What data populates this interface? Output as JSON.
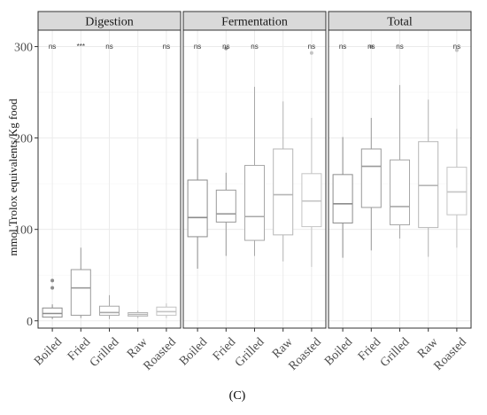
{
  "chart_data": {
    "type": "boxplot",
    "ylabel": "mmol Trolox equivalents/Kg food",
    "ylim": [
      -8,
      318
    ],
    "yticks": [
      0,
      100,
      200,
      300
    ],
    "categories": [
      "Boiled",
      "Fried",
      "Grilled",
      "Raw",
      "Roasted"
    ],
    "panels": [
      {
        "title": "Digestion",
        "boxes": [
          {
            "category": "Boiled",
            "whisker_low": 2,
            "q1": 4,
            "median": 8,
            "q3": 14,
            "whisker_high": 18,
            "outliers": [
              36,
              44
            ],
            "significance": "ns"
          },
          {
            "category": "Fried",
            "whisker_low": 3,
            "q1": 6,
            "median": 36,
            "q3": 56,
            "whisker_high": 80,
            "outliers": [],
            "significance": "***"
          },
          {
            "category": "Grilled",
            "whisker_low": 2,
            "q1": 6,
            "median": 9,
            "q3": 16,
            "whisker_high": 28,
            "outliers": [],
            "significance": "ns"
          },
          {
            "category": "Raw",
            "whisker_low": 3,
            "q1": 5,
            "median": 7,
            "q3": 9,
            "whisker_high": 11,
            "outliers": [],
            "significance": ""
          },
          {
            "category": "Roasted",
            "whisker_low": 3,
            "q1": 6,
            "median": 10,
            "q3": 15,
            "whisker_high": 19,
            "outliers": [],
            "significance": "ns"
          }
        ]
      },
      {
        "title": "Fermentation",
        "boxes": [
          {
            "category": "Boiled",
            "whisker_low": 57,
            "q1": 92,
            "median": 113,
            "q3": 154,
            "whisker_high": 199,
            "outliers": [],
            "significance": "ns"
          },
          {
            "category": "Fried",
            "whisker_low": 71,
            "q1": 108,
            "median": 117,
            "q3": 143,
            "whisker_high": 162,
            "outliers": [
              298
            ],
            "significance": "ns"
          },
          {
            "category": "Grilled",
            "whisker_low": 71,
            "q1": 88,
            "median": 114,
            "q3": 170,
            "whisker_high": 256,
            "outliers": [],
            "significance": "ns"
          },
          {
            "category": "Raw",
            "whisker_low": 65,
            "q1": 94,
            "median": 138,
            "q3": 188,
            "whisker_high": 240,
            "outliers": [],
            "significance": ""
          },
          {
            "category": "Roasted",
            "whisker_low": 59,
            "q1": 103,
            "median": 131,
            "q3": 161,
            "whisker_high": 222,
            "outliers": [
              293
            ],
            "significance": "ns"
          }
        ]
      },
      {
        "title": "Total",
        "boxes": [
          {
            "category": "Boiled",
            "whisker_low": 69,
            "q1": 107,
            "median": 128,
            "q3": 160,
            "whisker_high": 201,
            "outliers": [],
            "significance": "ns"
          },
          {
            "category": "Fried",
            "whisker_low": 77,
            "q1": 124,
            "median": 169,
            "q3": 188,
            "whisker_high": 222,
            "outliers": [
              300
            ],
            "significance": "ns"
          },
          {
            "category": "Grilled",
            "whisker_low": 90,
            "q1": 105,
            "median": 125,
            "q3": 176,
            "whisker_high": 258,
            "outliers": [],
            "significance": "ns"
          },
          {
            "category": "Raw",
            "whisker_low": 70,
            "q1": 102,
            "median": 148,
            "q3": 196,
            "whisker_high": 242,
            "outliers": [],
            "significance": ""
          },
          {
            "category": "Roasted",
            "whisker_low": 80,
            "q1": 116,
            "median": 141,
            "q3": 168,
            "whisker_high": 210,
            "outliers": [
              296
            ],
            "significance": "ns"
          }
        ]
      }
    ],
    "colors": [
      "#8c8c8c",
      "#9a9a9a",
      "#a8a8a8",
      "#b6b6b6",
      "#c4c4c4"
    ],
    "grid": true,
    "legend": "none"
  },
  "caption": "(C)"
}
